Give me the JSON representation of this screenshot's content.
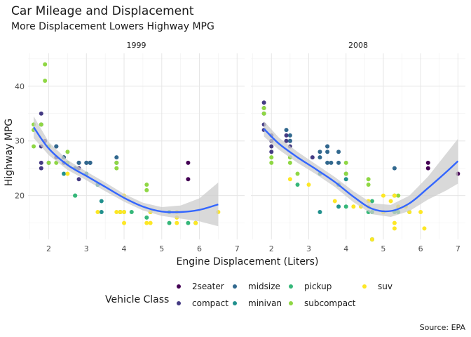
{
  "chart_data": {
    "type": "scatter",
    "title": "Car Mileage and Displacement",
    "subtitle": "More Displacement Lowers Highway MPG",
    "xlabel": "Engine Displacement (Liters)",
    "ylabel": "Highway MPG",
    "caption": "Source: EPA",
    "xlim": [
      1.45,
      7.2
    ],
    "ylim": [
      12,
      46
    ],
    "xticks": [
      2,
      3,
      4,
      5,
      6,
      7
    ],
    "yticks": [
      20,
      30,
      40
    ],
    "grid": true,
    "smoother": "loess with confidence band",
    "legend": {
      "title": "Vehicle Class",
      "position": "bottom",
      "items": [
        {
          "label": "2seater",
          "color": "#440154"
        },
        {
          "label": "compact",
          "color": "#443a83"
        },
        {
          "label": "midsize",
          "color": "#31688e"
        },
        {
          "label": "minivan",
          "color": "#21908d"
        },
        {
          "label": "pickup",
          "color": "#35b779"
        },
        {
          "label": "subcompact",
          "color": "#8fd744"
        },
        {
          "label": "suv",
          "color": "#fde725"
        }
      ]
    },
    "band_color": "#cccccc",
    "smooth_color": "#3366ff",
    "panels": [
      {
        "label": "1999",
        "points": [
          {
            "x": 1.8,
            "y": 29,
            "class": "compact"
          },
          {
            "x": 1.8,
            "y": 26,
            "class": "compact"
          },
          {
            "x": 1.8,
            "y": 25,
            "class": "compact"
          },
          {
            "x": 1.8,
            "y": 33,
            "class": "compact"
          },
          {
            "x": 1.8,
            "y": 35,
            "class": "compact"
          },
          {
            "x": 1.9,
            "y": 30,
            "class": "compact"
          },
          {
            "x": 2.0,
            "y": 26,
            "class": "compact"
          },
          {
            "x": 2.2,
            "y": 27,
            "class": "compact"
          },
          {
            "x": 2.2,
            "y": 29,
            "class": "compact"
          },
          {
            "x": 2.4,
            "y": 27,
            "class": "compact"
          },
          {
            "x": 2.4,
            "y": 26,
            "class": "compact"
          },
          {
            "x": 2.8,
            "y": 26,
            "class": "compact"
          },
          {
            "x": 2.8,
            "y": 25,
            "class": "compact"
          },
          {
            "x": 2.8,
            "y": 23,
            "class": "compact"
          },
          {
            "x": 3.0,
            "y": 26,
            "class": "compact"
          },
          {
            "x": 3.1,
            "y": 26,
            "class": "compact"
          },
          {
            "x": 2.2,
            "y": 29,
            "class": "midsize"
          },
          {
            "x": 2.4,
            "y": 27,
            "class": "midsize"
          },
          {
            "x": 2.5,
            "y": 26,
            "class": "midsize"
          },
          {
            "x": 2.8,
            "y": 26,
            "class": "midsize"
          },
          {
            "x": 3.0,
            "y": 26,
            "class": "midsize"
          },
          {
            "x": 3.1,
            "y": 26,
            "class": "midsize"
          },
          {
            "x": 3.8,
            "y": 27,
            "class": "midsize"
          },
          {
            "x": 3.8,
            "y": 26,
            "class": "midsize"
          },
          {
            "x": 2.7,
            "y": 25,
            "class": "midsize"
          },
          {
            "x": 2.4,
            "y": 24,
            "class": "minivan"
          },
          {
            "x": 3.0,
            "y": 24,
            "class": "minivan"
          },
          {
            "x": 3.3,
            "y": 22,
            "class": "minivan"
          },
          {
            "x": 3.3,
            "y": 22,
            "class": "minivan"
          },
          {
            "x": 3.4,
            "y": 19,
            "class": "minivan"
          },
          {
            "x": 3.4,
            "y": 17,
            "class": "minivan"
          },
          {
            "x": 2.7,
            "y": 20,
            "class": "pickup"
          },
          {
            "x": 2.7,
            "y": 20,
            "class": "pickup"
          },
          {
            "x": 3.9,
            "y": 17,
            "class": "pickup"
          },
          {
            "x": 3.9,
            "y": 17,
            "class": "pickup"
          },
          {
            "x": 4.7,
            "y": 17,
            "class": "pickup"
          },
          {
            "x": 5.2,
            "y": 15,
            "class": "pickup"
          },
          {
            "x": 5.2,
            "y": 17,
            "class": "pickup"
          },
          {
            "x": 5.7,
            "y": 15,
            "class": "pickup"
          },
          {
            "x": 5.9,
            "y": 15,
            "class": "pickup"
          },
          {
            "x": 4.2,
            "y": 17,
            "class": "pickup"
          },
          {
            "x": 4.6,
            "y": 16,
            "class": "pickup"
          },
          {
            "x": 4.0,
            "y": 17,
            "class": "pickup"
          },
          {
            "x": 1.6,
            "y": 33,
            "class": "subcompact"
          },
          {
            "x": 1.6,
            "y": 32,
            "class": "subcompact"
          },
          {
            "x": 1.6,
            "y": 29,
            "class": "subcompact"
          },
          {
            "x": 1.8,
            "y": 33,
            "class": "subcompact"
          },
          {
            "x": 1.9,
            "y": 44,
            "class": "subcompact"
          },
          {
            "x": 1.9,
            "y": 41,
            "class": "subcompact"
          },
          {
            "x": 2.0,
            "y": 29,
            "class": "subcompact"
          },
          {
            "x": 2.0,
            "y": 26,
            "class": "subcompact"
          },
          {
            "x": 2.5,
            "y": 26,
            "class": "subcompact"
          },
          {
            "x": 2.5,
            "y": 28,
            "class": "subcompact"
          },
          {
            "x": 3.8,
            "y": 26,
            "class": "subcompact"
          },
          {
            "x": 3.8,
            "y": 25,
            "class": "subcompact"
          },
          {
            "x": 4.6,
            "y": 22,
            "class": "subcompact"
          },
          {
            "x": 4.6,
            "y": 21,
            "class": "subcompact"
          },
          {
            "x": 2.2,
            "y": 26,
            "class": "subcompact"
          },
          {
            "x": 5.7,
            "y": 26,
            "class": "2seater"
          },
          {
            "x": 5.7,
            "y": 23,
            "class": "2seater"
          },
          {
            "x": 2.5,
            "y": 24,
            "class": "suv"
          },
          {
            "x": 3.3,
            "y": 17,
            "class": "suv"
          },
          {
            "x": 3.9,
            "y": 17,
            "class": "suv"
          },
          {
            "x": 4.0,
            "y": 17,
            "class": "suv"
          },
          {
            "x": 4.0,
            "y": 20,
            "class": "suv"
          },
          {
            "x": 4.0,
            "y": 15,
            "class": "suv"
          },
          {
            "x": 4.6,
            "y": 15,
            "class": "suv"
          },
          {
            "x": 4.7,
            "y": 15,
            "class": "suv"
          },
          {
            "x": 5.4,
            "y": 17,
            "class": "suv"
          },
          {
            "x": 5.4,
            "y": 15,
            "class": "suv"
          },
          {
            "x": 5.9,
            "y": 15,
            "class": "suv"
          },
          {
            "x": 6.5,
            "y": 17,
            "class": "suv"
          },
          {
            "x": 4.7,
            "y": 17,
            "class": "suv"
          },
          {
            "x": 3.8,
            "y": 17,
            "class": "suv"
          },
          {
            "x": 5.4,
            "y": 16,
            "class": "suv"
          }
        ],
        "smooth": [
          [
            1.6,
            32.5
          ],
          [
            2.0,
            28.6
          ],
          [
            2.5,
            25.6
          ],
          [
            3.0,
            23.6
          ],
          [
            3.5,
            21.6
          ],
          [
            4.0,
            19.6
          ],
          [
            4.5,
            18.0
          ],
          [
            5.0,
            17.1
          ],
          [
            5.5,
            17.0
          ],
          [
            6.0,
            17.4
          ],
          [
            6.5,
            18.4
          ]
        ],
        "band_lower": [
          30.5,
          27.4,
          24.7,
          22.8,
          20.8,
          18.9,
          17.3,
          16.3,
          15.8,
          15.3,
          14.4
        ],
        "band_upper": [
          34.5,
          29.8,
          26.5,
          24.4,
          22.4,
          20.3,
          18.7,
          17.9,
          18.2,
          19.5,
          22.4
        ]
      },
      {
        "label": "2008",
        "points": [
          {
            "x": 1.8,
            "y": 37,
            "class": "compact"
          },
          {
            "x": 1.8,
            "y": 35,
            "class": "compact"
          },
          {
            "x": 1.8,
            "y": 33,
            "class": "compact"
          },
          {
            "x": 1.8,
            "y": 32,
            "class": "compact"
          },
          {
            "x": 2.0,
            "y": 31,
            "class": "compact"
          },
          {
            "x": 2.0,
            "y": 30,
            "class": "compact"
          },
          {
            "x": 2.0,
            "y": 28,
            "class": "compact"
          },
          {
            "x": 2.0,
            "y": 29,
            "class": "compact"
          },
          {
            "x": 2.4,
            "y": 31,
            "class": "compact"
          },
          {
            "x": 2.4,
            "y": 30,
            "class": "compact"
          },
          {
            "x": 2.5,
            "y": 29,
            "class": "compact"
          },
          {
            "x": 2.5,
            "y": 30,
            "class": "compact"
          },
          {
            "x": 3.1,
            "y": 27,
            "class": "compact"
          },
          {
            "x": 3.5,
            "y": 29,
            "class": "compact"
          },
          {
            "x": 1.8,
            "y": 36,
            "class": "compact"
          },
          {
            "x": 2.4,
            "y": 32,
            "class": "midsize"
          },
          {
            "x": 2.5,
            "y": 31,
            "class": "midsize"
          },
          {
            "x": 2.5,
            "y": 30,
            "class": "midsize"
          },
          {
            "x": 3.3,
            "y": 28,
            "class": "midsize"
          },
          {
            "x": 3.3,
            "y": 27,
            "class": "midsize"
          },
          {
            "x": 3.5,
            "y": 28,
            "class": "midsize"
          },
          {
            "x": 3.5,
            "y": 29,
            "class": "midsize"
          },
          {
            "x": 3.6,
            "y": 26,
            "class": "midsize"
          },
          {
            "x": 3.8,
            "y": 28,
            "class": "midsize"
          },
          {
            "x": 3.8,
            "y": 26,
            "class": "midsize"
          },
          {
            "x": 3.5,
            "y": 26,
            "class": "midsize"
          },
          {
            "x": 5.3,
            "y": 25,
            "class": "midsize"
          },
          {
            "x": 3.3,
            "y": 17,
            "class": "minivan"
          },
          {
            "x": 3.3,
            "y": 24,
            "class": "minivan"
          },
          {
            "x": 3.8,
            "y": 22,
            "class": "minivan"
          },
          {
            "x": 3.8,
            "y": 18,
            "class": "minivan"
          },
          {
            "x": 4.0,
            "y": 23,
            "class": "minivan"
          },
          {
            "x": 4.0,
            "y": 24,
            "class": "minivan"
          },
          {
            "x": 4.7,
            "y": 12,
            "class": "pickup"
          },
          {
            "x": 4.7,
            "y": 12,
            "class": "pickup"
          },
          {
            "x": 4.7,
            "y": 17,
            "class": "pickup"
          },
          {
            "x": 5.7,
            "y": 17,
            "class": "pickup"
          },
          {
            "x": 5.3,
            "y": 17,
            "class": "pickup"
          },
          {
            "x": 5.4,
            "y": 17,
            "class": "pickup"
          },
          {
            "x": 4.0,
            "y": 18,
            "class": "pickup"
          },
          {
            "x": 4.6,
            "y": 17,
            "class": "pickup"
          },
          {
            "x": 2.7,
            "y": 22,
            "class": "pickup"
          },
          {
            "x": 4.7,
            "y": 19,
            "class": "pickup"
          },
          {
            "x": 5.3,
            "y": 20,
            "class": "pickup"
          },
          {
            "x": 1.8,
            "y": 36,
            "class": "subcompact"
          },
          {
            "x": 1.8,
            "y": 35,
            "class": "subcompact"
          },
          {
            "x": 2.0,
            "y": 27,
            "class": "subcompact"
          },
          {
            "x": 2.0,
            "y": 26,
            "class": "subcompact"
          },
          {
            "x": 2.5,
            "y": 27,
            "class": "subcompact"
          },
          {
            "x": 2.5,
            "y": 26,
            "class": "subcompact"
          },
          {
            "x": 4.6,
            "y": 23,
            "class": "subcompact"
          },
          {
            "x": 4.6,
            "y": 22,
            "class": "subcompact"
          },
          {
            "x": 4.0,
            "y": 26,
            "class": "subcompact"
          },
          {
            "x": 5.4,
            "y": 20,
            "class": "subcompact"
          },
          {
            "x": 4.0,
            "y": 24,
            "class": "subcompact"
          },
          {
            "x": 2.7,
            "y": 24,
            "class": "subcompact"
          },
          {
            "x": 6.2,
            "y": 26,
            "class": "2seater"
          },
          {
            "x": 6.2,
            "y": 25,
            "class": "2seater"
          },
          {
            "x": 7.0,
            "y": 24,
            "class": "2seater"
          },
          {
            "x": 2.5,
            "y": 23,
            "class": "suv"
          },
          {
            "x": 3.0,
            "y": 22,
            "class": "suv"
          },
          {
            "x": 3.7,
            "y": 19,
            "class": "suv"
          },
          {
            "x": 4.2,
            "y": 18,
            "class": "suv"
          },
          {
            "x": 4.6,
            "y": 18,
            "class": "suv"
          },
          {
            "x": 4.7,
            "y": 12,
            "class": "suv"
          },
          {
            "x": 5.0,
            "y": 17,
            "class": "suv"
          },
          {
            "x": 5.3,
            "y": 20,
            "class": "suv"
          },
          {
            "x": 5.3,
            "y": 15,
            "class": "suv"
          },
          {
            "x": 5.3,
            "y": 14,
            "class": "suv"
          },
          {
            "x": 5.4,
            "y": 18,
            "class": "suv"
          },
          {
            "x": 5.7,
            "y": 17,
            "class": "suv"
          },
          {
            "x": 6.0,
            "y": 17,
            "class": "suv"
          },
          {
            "x": 6.1,
            "y": 14,
            "class": "suv"
          },
          {
            "x": 4.4,
            "y": 18,
            "class": "suv"
          },
          {
            "x": 4.6,
            "y": 19,
            "class": "suv"
          },
          {
            "x": 5.0,
            "y": 20,
            "class": "suv"
          },
          {
            "x": 5.2,
            "y": 19,
            "class": "suv"
          },
          {
            "x": 5.6,
            "y": 18,
            "class": "suv"
          }
        ],
        "smooth": [
          [
            1.8,
            32.2
          ],
          [
            2.2,
            29.5
          ],
          [
            2.7,
            27.0
          ],
          [
            3.2,
            24.8
          ],
          [
            3.7,
            22.5
          ],
          [
            4.2,
            19.8
          ],
          [
            4.7,
            17.6
          ],
          [
            5.2,
            17.2
          ],
          [
            5.7,
            18.6
          ],
          [
            6.2,
            21.4
          ],
          [
            6.7,
            24.4
          ],
          [
            7.0,
            26.3
          ]
        ],
        "band_lower": [
          30.8,
          28.4,
          26.0,
          23.9,
          21.6,
          18.8,
          16.6,
          16.1,
          17.2,
          19.3,
          21.0,
          22.2
        ],
        "band_upper": [
          33.6,
          30.6,
          28.0,
          25.7,
          23.4,
          20.8,
          18.6,
          18.3,
          20.0,
          23.5,
          27.8,
          30.4
        ]
      }
    ]
  }
}
